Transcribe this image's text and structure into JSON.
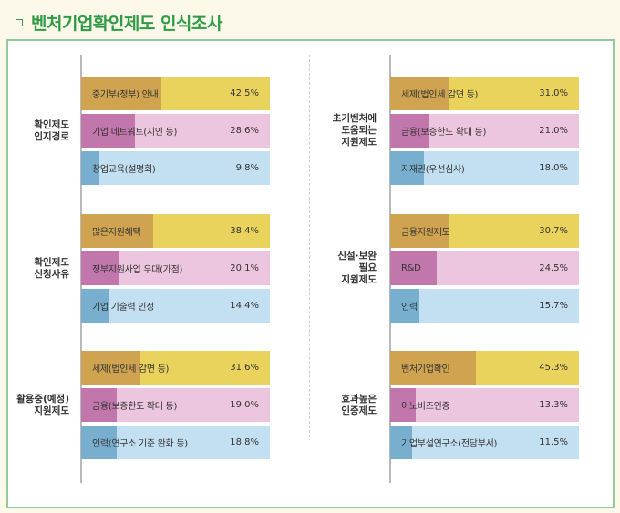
{
  "header": {
    "title": "벤처기업확인제도 인식조사",
    "bullet_icon": "square-bullet-icon"
  },
  "colors": {
    "title": "#2f9b45",
    "frame_border": "#93c99c",
    "rank1_light": "#ead35c",
    "rank1_dark": "#cfa350",
    "rank2_light": "#ecc6df",
    "rank2_dark": "#c277ac",
    "rank3_light": "#c3dff2",
    "rank3_dark": "#78afcf"
  },
  "chart_data": {
    "type": "bar",
    "orientation": "horizontal",
    "unit": "%",
    "xlim": [
      0,
      100
    ],
    "panels": [
      {
        "side": "left",
        "groups": [
          {
            "label": [
              "확인제도",
              "인지경로"
            ],
            "items": [
              {
                "category": "중기부(정부) 안내",
                "value": 42.5,
                "display": "42.5%"
              },
              {
                "category": "기업 네트워트(지인 등)",
                "value": 28.6,
                "display": "28.6%"
              },
              {
                "category": "창업교육(설명회)",
                "value": 9.8,
                "display": "9.8%"
              }
            ]
          },
          {
            "label": [
              "확인제도",
              "신청사유"
            ],
            "items": [
              {
                "category": "많은지원혜택",
                "value": 38.4,
                "display": "38.4%"
              },
              {
                "category": "정부지원사업 우대(가점)",
                "value": 20.1,
                "display": "20.1%"
              },
              {
                "category": "기업 기술력 인정",
                "value": 14.4,
                "display": "14.4%"
              }
            ]
          },
          {
            "label": [
              "활용중(예정)",
              "지원제도"
            ],
            "items": [
              {
                "category": "세제(법인세 감면 등)",
                "value": 31.6,
                "display": "31.6%"
              },
              {
                "category": "금융(보증한도 확대 등)",
                "value": 19.0,
                "display": "19.0%"
              },
              {
                "category": "인력(연구소 기준 완화 등)",
                "value": 18.8,
                "display": "18.8%"
              }
            ]
          }
        ]
      },
      {
        "side": "right",
        "groups": [
          {
            "label": [
              "초기벤처에",
              "도움되는",
              "지원제도"
            ],
            "items": [
              {
                "category": "세제(법인세 감면 등)",
                "value": 31.0,
                "display": "31.0%"
              },
              {
                "category": "금융(보증한도 확대 등)",
                "value": 21.0,
                "display": "21.0%"
              },
              {
                "category": "지재권(우선심사)",
                "value": 18.0,
                "display": "18.0%"
              }
            ]
          },
          {
            "label": [
              "신설·보완",
              "필요",
              "지원제도"
            ],
            "items": [
              {
                "category": "금융지원제도",
                "value": 30.7,
                "display": "30.7%"
              },
              {
                "category": "R&D",
                "value": 24.5,
                "display": "24.5%"
              },
              {
                "category": "인력",
                "value": 15.7,
                "display": "15.7%"
              }
            ]
          },
          {
            "label": [
              "효과높은",
              "인증제도"
            ],
            "items": [
              {
                "category": "벤처기업확인",
                "value": 45.3,
                "display": "45.3%"
              },
              {
                "category": "이노비즈인증",
                "value": 13.3,
                "display": "13.3%"
              },
              {
                "category": "기업부설연구소(전담부서)",
                "value": 11.5,
                "display": "11.5%"
              }
            ]
          }
        ]
      }
    ]
  }
}
